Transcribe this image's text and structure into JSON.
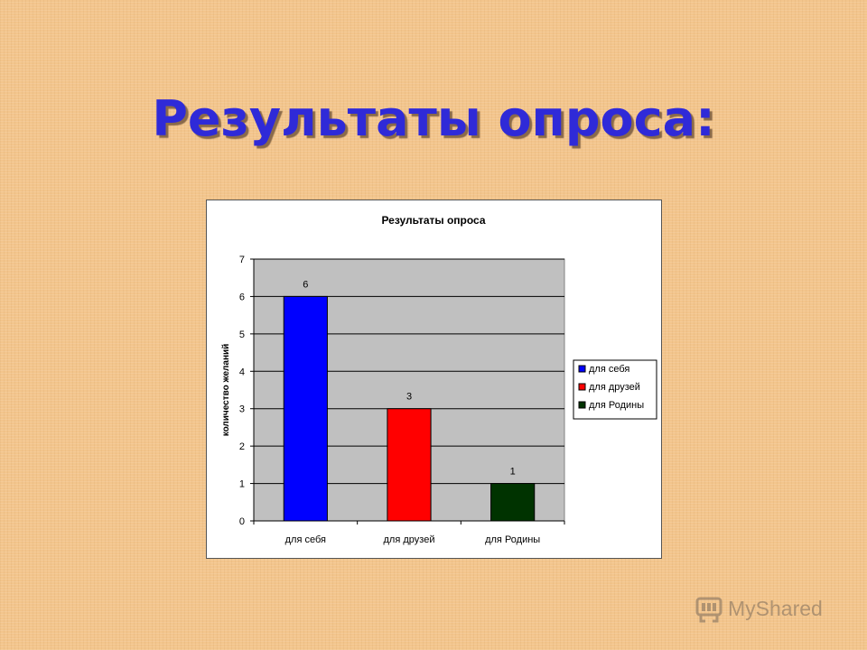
{
  "slide": {
    "title": "Результаты опроса:"
  },
  "watermark": {
    "text": "MyShared",
    "icon": "myshared-logo-icon"
  },
  "chart_data": {
    "type": "bar",
    "title": "Результаты опроса",
    "ylabel": "количество желаний",
    "xlabel": "",
    "categories": [
      "для себя",
      "для друзей",
      "для Родины"
    ],
    "values": [
      6,
      3,
      1
    ],
    "colors": [
      "#0000ff",
      "#ff0000",
      "#003300"
    ],
    "ylim": [
      0,
      7
    ],
    "yticks": [
      0,
      1,
      2,
      3,
      4,
      5,
      6,
      7
    ],
    "grid": true,
    "plot_background": "#c0c0c0",
    "data_labels": true,
    "legend": {
      "position": "right",
      "entries": [
        "для себя",
        "для друзей",
        "для Родины"
      ]
    }
  }
}
